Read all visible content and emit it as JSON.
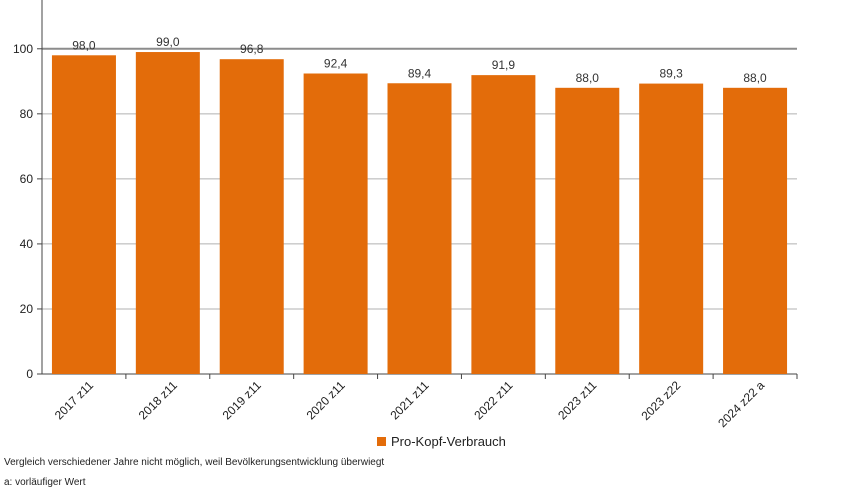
{
  "chart_data": {
    "type": "bar",
    "categories": [
      "2017 z11",
      "2018 z11",
      "2019 z11",
      "2020 z11",
      "2021 z11",
      "2022 z11",
      "2023 z11",
      "2023 z22",
      "2024 z22  a"
    ],
    "series": [
      {
        "name": "Pro-Kopf-Verbrauch",
        "values": [
          98.0,
          99.0,
          96.8,
          92.4,
          89.4,
          91.9,
          88.0,
          89.3,
          88.0
        ]
      }
    ],
    "value_labels": [
      "98,0",
      "99,0",
      "96,8",
      "92,4",
      "89,4",
      "91,9",
      "88,0",
      "89,3",
      "88,0"
    ],
    "y_ticks": [
      0,
      20,
      40,
      60,
      80,
      100
    ],
    "ylim": [
      0,
      115
    ],
    "grid": true,
    "reference_line": 100,
    "legend_position": "bottom",
    "bar_color": "#E36C0A"
  },
  "footnotes": {
    "note1": "Vergleich  verschiedener Jahre nicht möglich, weil Bevölkerungsentwicklung überwiegt",
    "note2": "a: vorläufiger Wert"
  }
}
